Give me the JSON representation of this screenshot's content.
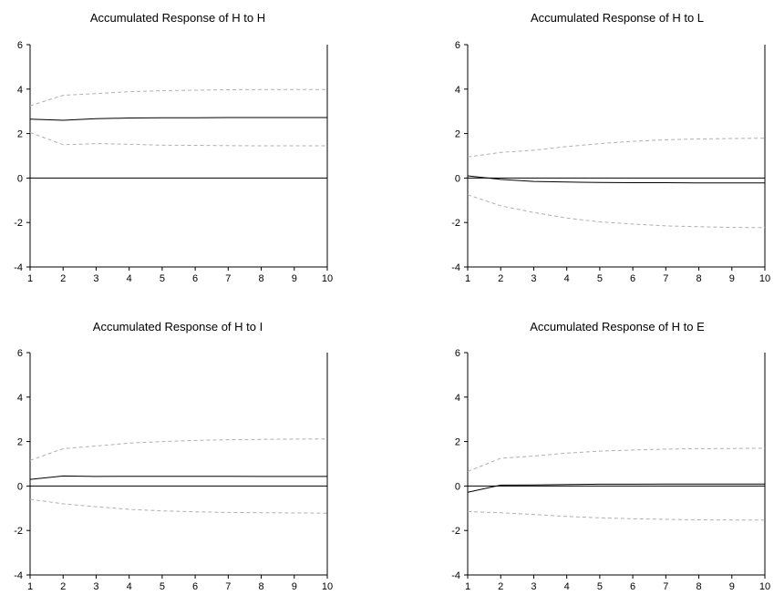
{
  "chart_data": [
    {
      "type": "line",
      "title": "Accumulated Response of H to H",
      "x": [
        1,
        2,
        3,
        4,
        5,
        6,
        7,
        8,
        9,
        10
      ],
      "ylim": [
        -4,
        6
      ],
      "yticks": [
        "-4",
        "-2",
        "0",
        "2",
        "4",
        "6"
      ],
      "xticks": [
        "1",
        "2",
        "3",
        "4",
        "5",
        "6",
        "7",
        "8",
        "9",
        "10"
      ],
      "series": [
        {
          "role": "response",
          "style": "solid",
          "color": "#000000",
          "values": [
            2.65,
            2.6,
            2.67,
            2.7,
            2.71,
            2.71,
            2.72,
            2.72,
            2.72,
            2.72
          ]
        },
        {
          "role": "upper-band",
          "style": "dashed",
          "color": "#b0b0b0",
          "values": [
            3.25,
            3.72,
            3.8,
            3.88,
            3.93,
            3.95,
            3.97,
            3.98,
            3.98,
            3.98
          ]
        },
        {
          "role": "lower-band",
          "style": "dashed",
          "color": "#b0b0b0",
          "values": [
            2.05,
            1.5,
            1.55,
            1.52,
            1.48,
            1.47,
            1.46,
            1.45,
            1.45,
            1.45
          ]
        }
      ]
    },
    {
      "type": "line",
      "title": "Accumulated Response of H to L",
      "x": [
        1,
        2,
        3,
        4,
        5,
        6,
        7,
        8,
        9,
        10
      ],
      "ylim": [
        -4,
        6
      ],
      "yticks": [
        "-4",
        "-2",
        "0",
        "2",
        "4",
        "6"
      ],
      "xticks": [
        "1",
        "2",
        "3",
        "4",
        "5",
        "6",
        "7",
        "8",
        "9",
        "10"
      ],
      "series": [
        {
          "role": "response",
          "style": "solid",
          "color": "#000000",
          "values": [
            0.1,
            -0.06,
            -0.15,
            -0.18,
            -0.2,
            -0.21,
            -0.21,
            -0.22,
            -0.22,
            -0.22
          ]
        },
        {
          "role": "upper-band",
          "style": "dashed",
          "color": "#b0b0b0",
          "values": [
            0.95,
            1.15,
            1.25,
            1.42,
            1.55,
            1.65,
            1.72,
            1.76,
            1.78,
            1.79
          ]
        },
        {
          "role": "lower-band",
          "style": "dashed",
          "color": "#b0b0b0",
          "values": [
            -0.75,
            -1.25,
            -1.55,
            -1.8,
            -1.97,
            -2.07,
            -2.15,
            -2.19,
            -2.22,
            -2.23
          ]
        }
      ]
    },
    {
      "type": "line",
      "title": "Accumulated Response of H to I",
      "x": [
        1,
        2,
        3,
        4,
        5,
        6,
        7,
        8,
        9,
        10
      ],
      "ylim": [
        -4,
        6
      ],
      "yticks": [
        "-4",
        "-2",
        "0",
        "2",
        "4",
        "6"
      ],
      "xticks": [
        "1",
        "2",
        "3",
        "4",
        "5",
        "6",
        "7",
        "8",
        "9",
        "10"
      ],
      "series": [
        {
          "role": "response",
          "style": "solid",
          "color": "#000000",
          "values": [
            0.3,
            0.45,
            0.43,
            0.44,
            0.44,
            0.44,
            0.44,
            0.43,
            0.43,
            0.43
          ]
        },
        {
          "role": "upper-band",
          "style": "dashed",
          "color": "#b0b0b0",
          "values": [
            1.15,
            1.68,
            1.8,
            1.93,
            2.0,
            2.05,
            2.08,
            2.1,
            2.11,
            2.12
          ]
        },
        {
          "role": "lower-band",
          "style": "dashed",
          "color": "#b0b0b0",
          "values": [
            -0.6,
            -0.8,
            -0.93,
            -1.05,
            -1.12,
            -1.16,
            -1.19,
            -1.2,
            -1.21,
            -1.22
          ]
        }
      ]
    },
    {
      "type": "line",
      "title": "Accumulated Response of H to E",
      "x": [
        1,
        2,
        3,
        4,
        5,
        6,
        7,
        8,
        9,
        10
      ],
      "ylim": [
        -4,
        6
      ],
      "yticks": [
        "-4",
        "-2",
        "0",
        "2",
        "4",
        "6"
      ],
      "xticks": [
        "1",
        "2",
        "3",
        "4",
        "5",
        "6",
        "7",
        "8",
        "9",
        "10"
      ],
      "series": [
        {
          "role": "response",
          "style": "solid",
          "color": "#000000",
          "values": [
            -0.28,
            0.04,
            0.05,
            0.07,
            0.08,
            0.08,
            0.09,
            0.09,
            0.09,
            0.09
          ]
        },
        {
          "role": "upper-band",
          "style": "dashed",
          "color": "#b0b0b0",
          "values": [
            0.65,
            1.25,
            1.35,
            1.48,
            1.57,
            1.62,
            1.66,
            1.68,
            1.69,
            1.7
          ]
        },
        {
          "role": "lower-band",
          "style": "dashed",
          "color": "#b0b0b0",
          "values": [
            -1.15,
            -1.2,
            -1.28,
            -1.37,
            -1.43,
            -1.47,
            -1.5,
            -1.52,
            -1.53,
            -1.53
          ]
        }
      ]
    }
  ]
}
